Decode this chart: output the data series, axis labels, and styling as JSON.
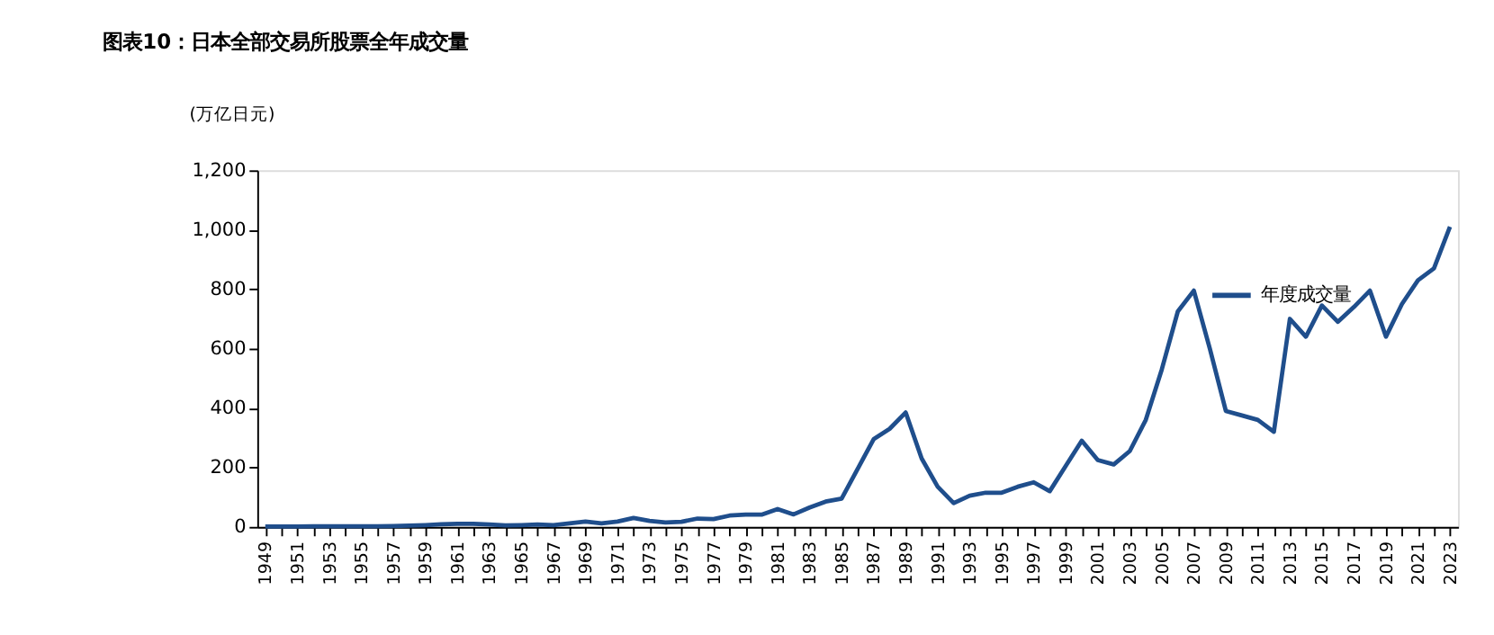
{
  "chart_data": {
    "type": "line",
    "title": "图表10：日本全部交易所股票全年成交量",
    "ylabel": "(万亿日元)",
    "categories": [
      "1949",
      null,
      "1951",
      null,
      "1953",
      null,
      "1955",
      null,
      "1957",
      null,
      "1959",
      null,
      "1961",
      null,
      "1963",
      null,
      "1965",
      null,
      "1967",
      null,
      "1969",
      null,
      "1971",
      null,
      "1973",
      null,
      "1975",
      null,
      "1977",
      null,
      "1979",
      null,
      "1981",
      null,
      "1983",
      null,
      "1985",
      null,
      "1987",
      null,
      "1989",
      null,
      "1991",
      null,
      "1993",
      null,
      "1995",
      null,
      "1997",
      null,
      "1999",
      null,
      "2001",
      null,
      "2003",
      null,
      "2005",
      null,
      "2007",
      null,
      "2009",
      null,
      "2011",
      null,
      "2013",
      null,
      "2015",
      null,
      "2017",
      null,
      "2019",
      null,
      "2021",
      null,
      "2023"
    ],
    "series": [
      {
        "name": "年度成交量",
        "color": "#1f4e8c",
        "values": [
          1,
          1,
          1,
          2,
          2,
          2,
          2,
          2,
          3,
          4,
          6,
          9,
          10,
          10,
          8,
          5,
          6,
          8,
          6,
          12,
          18,
          12,
          18,
          30,
          20,
          15,
          17,
          28,
          26,
          38,
          41,
          41,
          60,
          42,
          65,
          85,
          95,
          195,
          295,
          330,
          385,
          230,
          135,
          80,
          105,
          115,
          115,
          135,
          150,
          120,
          205,
          290,
          225,
          210,
          255,
          360,
          530,
          725,
          795,
          600,
          390,
          375,
          360,
          320,
          700,
          640,
          745,
          690,
          740,
          795,
          640,
          750,
          830,
          870,
          1010
        ]
      }
    ],
    "ylim": [
      0,
      1200
    ],
    "yticks": [
      0,
      200,
      400,
      600,
      800,
      {
        "value": 1000,
        "label": "1,000"
      },
      {
        "value": 1200,
        "label": "1,200"
      }
    ],
    "legend": "top right",
    "grid": false,
    "marker": "none",
    "line_style": "solid"
  }
}
